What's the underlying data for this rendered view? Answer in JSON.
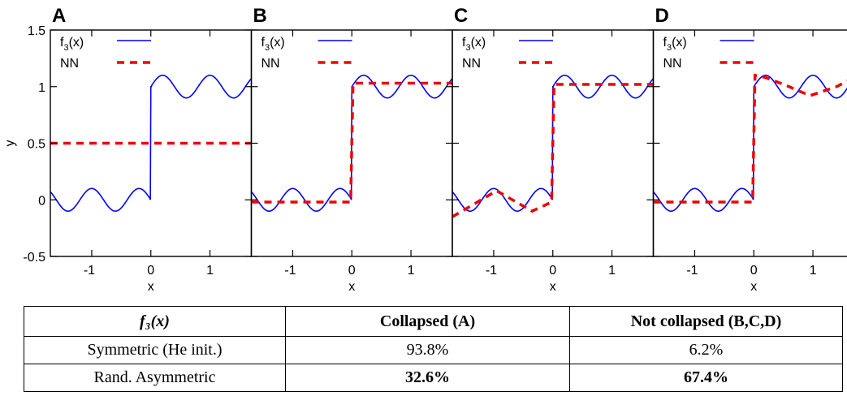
{
  "chart_data": [
    {
      "panel": "A",
      "type": "line",
      "xlabel": "x",
      "ylabel": "y",
      "xlim": [
        -1.7,
        1.7
      ],
      "ylim": [
        -0.5,
        1.5
      ],
      "xticks": [
        "-1",
        "0",
        "1"
      ],
      "yticks": [
        "-0.5",
        "0",
        "0.5",
        "1",
        "1.5"
      ],
      "series": [
        {
          "name": "f3(x)",
          "style": "solid",
          "color": "#0000ff",
          "function": "x<0: -0.1*sin(2.5*pi*x); x>=0: 1+0.1*sin(2.5*pi*x)"
        },
        {
          "name": "NN",
          "style": "dashed",
          "color": "#ee0000",
          "x": [
            -1.7,
            1.7
          ],
          "y": [
            0.5,
            0.5
          ]
        }
      ],
      "legend_position": "top-left"
    },
    {
      "panel": "B",
      "type": "line",
      "xlabel": "x",
      "xlim": [
        -1.7,
        1.7
      ],
      "ylim": [
        -0.5,
        1.5
      ],
      "xticks": [
        "-1",
        "0",
        "1"
      ],
      "series": [
        {
          "name": "f3(x)",
          "style": "solid",
          "color": "#0000ff",
          "function": "x<0: -0.1*sin(2.5*pi*x); x>=0: 1+0.1*sin(2.5*pi*x)"
        },
        {
          "name": "NN",
          "style": "dashed",
          "color": "#ee0000",
          "x": [
            -1.7,
            -0.02,
            0.02,
            1.7
          ],
          "y": [
            -0.02,
            -0.02,
            1.03,
            1.03
          ]
        }
      ],
      "legend_position": "top-left"
    },
    {
      "panel": "C",
      "type": "line",
      "xlabel": "x",
      "xlim": [
        -1.7,
        1.7
      ],
      "ylim": [
        -0.5,
        1.5
      ],
      "xticks": [
        "-1",
        "0",
        "1"
      ],
      "series": [
        {
          "name": "f3(x)",
          "style": "solid",
          "color": "#0000ff",
          "function": "x<0: -0.1*sin(2.5*pi*x); x>=0: 1+0.1*sin(2.5*pi*x)"
        },
        {
          "name": "NN",
          "style": "dashed",
          "color": "#ee0000",
          "x": [
            -1.7,
            -0.95,
            -0.35,
            -0.02,
            0.02,
            1.7
          ],
          "y": [
            -0.15,
            0.08,
            -0.1,
            -0.02,
            1.02,
            1.02
          ]
        }
      ],
      "legend_position": "top-left"
    },
    {
      "panel": "D",
      "type": "line",
      "xlabel": "x",
      "xlim": [
        -1.7,
        1.7
      ],
      "ylim": [
        -0.5,
        1.5
      ],
      "xticks": [
        "-1",
        "0",
        "1"
      ],
      "series": [
        {
          "name": "f3(x)",
          "style": "solid",
          "color": "#0000ff",
          "function": "x<0: -0.1*sin(2.5*pi*x); x>=0: 1+0.1*sin(2.5*pi*x)"
        },
        {
          "name": "NN",
          "style": "dashed",
          "color": "#ee0000",
          "x": [
            -1.7,
            -0.02,
            0.02,
            0.2,
            0.55,
            0.95,
            1.4,
            1.7
          ],
          "y": [
            -0.02,
            -0.02,
            1.1,
            1.08,
            1.01,
            0.92,
            1.0,
            1.08
          ]
        }
      ],
      "legend_position": "top-left"
    }
  ],
  "legend": {
    "f_base": "f",
    "f_sub": "3",
    "f_suffix": "(x)",
    "nn": "NN"
  },
  "colors": {
    "f3": "#0000ff",
    "nn": "#ee0000",
    "axes": "#000000"
  },
  "table": {
    "header": {
      "fn": "f₃(x)",
      "collapsed": "Collapsed (A)",
      "not_collapsed": "Not collapsed (B,C,D)"
    },
    "rows": [
      {
        "label": "Symmetric (He init.)",
        "collapsed": "93.8%",
        "not_collapsed": "6.2%",
        "bold": false
      },
      {
        "label": "Rand. Asymmetric",
        "collapsed": "32.6%",
        "not_collapsed": "67.4%",
        "bold": true
      }
    ]
  }
}
